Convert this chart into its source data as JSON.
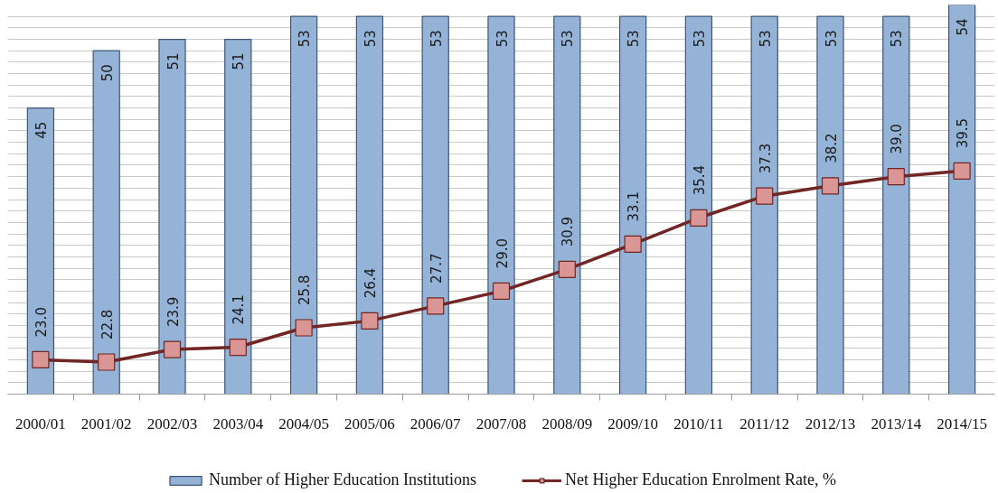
{
  "chart_data": {
    "type": "bar",
    "categories": [
      "2000/01",
      "2001/02",
      "2002/03",
      "2003/04",
      "2004/05",
      "2005/06",
      "2006/07",
      "2007/08",
      "2008/09",
      "2009/10",
      "2010/11",
      "2011/12",
      "2012/13",
      "2013/14",
      "2014/15"
    ],
    "series": [
      {
        "name": "Number of Higher Education Institutions",
        "color": "#95b3d7",
        "values": [
          45,
          50,
          51,
          51,
          53,
          53,
          53,
          53,
          53,
          53,
          53,
          53,
          53,
          53,
          54
        ]
      },
      {
        "type": "line",
        "name": "Net Higher Education Enrolment Rate, %",
        "color": "#722525",
        "colors": [
          "#d99694",
          "#d99694",
          "#d99694",
          "#d99694",
          "#d99694",
          "#d99694",
          "#d99694",
          "#d99694",
          "#d99694",
          "#d99694",
          "#d99694",
          "#d99694",
          "#d99694",
          "#d99694",
          "#d99694"
        ],
        "values": [
          23.0,
          22.8,
          23.9,
          24.1,
          25.8,
          26.4,
          27.7,
          29.0,
          30.9,
          33.1,
          35.4,
          37.3,
          38.2,
          39.0,
          39.5
        ],
        "value_labels": [
          "23.0",
          "22.8",
          "23.9",
          "24.1",
          "25.8",
          "26.4",
          "27.7",
          "29.0",
          "30.9",
          "33.1",
          "35.4",
          "37.3",
          "38.2",
          "39.0",
          "39.5"
        ]
      }
    ],
    "ylim": [
      20,
      54
    ],
    "yticks": [
      {
        "value": 20,
        "label": null
      },
      {
        "value": 21,
        "label": null
      },
      {
        "value": 22,
        "label": null
      },
      {
        "value": 23,
        "label": null
      },
      {
        "value": 24,
        "label": null
      },
      {
        "value": 25,
        "label": null
      },
      {
        "value": 26,
        "label": null
      },
      {
        "value": 27,
        "label": null
      },
      {
        "value": 28,
        "label": null
      },
      {
        "value": 29,
        "label": null
      },
      {
        "value": 30,
        "label": null
      },
      {
        "value": 31,
        "label": null
      },
      {
        "value": 32,
        "label": null
      },
      {
        "value": 33,
        "label": null
      },
      {
        "value": 34,
        "label": null
      },
      {
        "value": 35,
        "label": null
      },
      {
        "value": 36,
        "label": null
      },
      {
        "value": 37,
        "label": null
      },
      {
        "value": 38,
        "label": null
      },
      {
        "value": 39,
        "label": null
      },
      {
        "value": 40,
        "label": null
      },
      {
        "value": 41,
        "label": null
      },
      {
        "value": 42,
        "label": null
      },
      {
        "value": 43,
        "label": null
      },
      {
        "value": 44,
        "label": null
      },
      {
        "value": 45,
        "label": null
      },
      {
        "value": 46,
        "label": null
      },
      {
        "value": 47,
        "label": null
      },
      {
        "value": 48,
        "label": null
      },
      {
        "value": 49,
        "label": null
      },
      {
        "value": 50,
        "label": null
      },
      {
        "value": 51,
        "label": null
      },
      {
        "value": 52,
        "label": null
      },
      {
        "value": 53,
        "label": null
      }
    ],
    "grid": "y",
    "tick_labels": "x",
    "marker": "square",
    "line_style": "solid",
    "legend": "bottom",
    "data_labels": true
  }
}
